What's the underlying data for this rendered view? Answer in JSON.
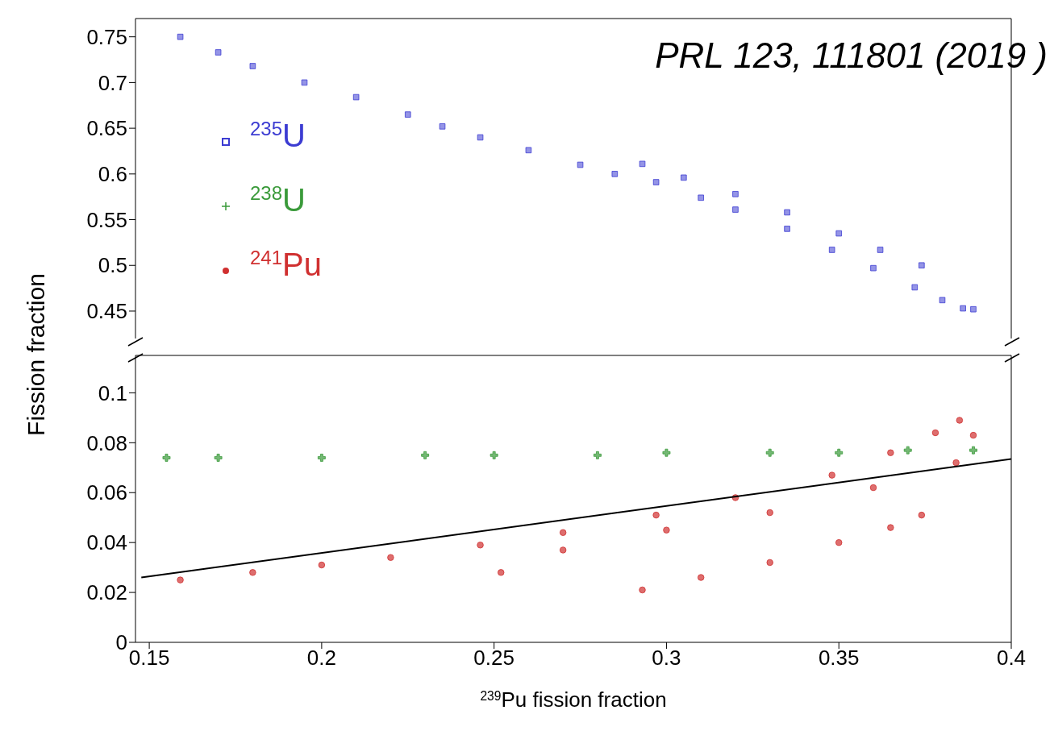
{
  "chart_data": [
    {
      "type": "scatter",
      "xlim": [
        0.146,
        0.4
      ],
      "ylim": [
        0.42,
        0.77
      ],
      "yticks": [
        0.45,
        0.5,
        0.55,
        0.6,
        0.65,
        0.7,
        0.75
      ],
      "tick_labels": "y",
      "legend": "top left",
      "annotations": [
        "PRL 123, 111801 (2019 )"
      ],
      "series": [
        {
          "name": "$^{235}$U",
          "color": "#3c3cd2",
          "marker": "square",
          "x": [
            0.159,
            0.17,
            0.18,
            0.195,
            0.21,
            0.225,
            0.235,
            0.246,
            0.26,
            0.275,
            0.285,
            0.297,
            0.31,
            0.32,
            0.335,
            0.348,
            0.36,
            0.372,
            0.38,
            0.386,
            0.389,
            0.293,
            0.305,
            0.32,
            0.335,
            0.35,
            0.362,
            0.374
          ],
          "values": [
            0.75,
            0.733,
            0.718,
            0.7,
            0.684,
            0.665,
            0.652,
            0.64,
            0.626,
            0.61,
            0.6,
            0.591,
            0.574,
            0.561,
            0.54,
            0.517,
            0.497,
            0.476,
            0.462,
            0.453,
            0.452,
            0.611,
            0.596,
            0.578,
            0.558,
            0.535,
            0.517,
            0.5
          ]
        }
      ]
    },
    {
      "type": "scatter",
      "xlabel": "$^{239}$Pu fission fraction",
      "ylabel": "Fission fraction",
      "legend": "top left",
      "xlim": [
        0.146,
        0.4
      ],
      "xticks": [
        0.15,
        0.2,
        0.25,
        0.3,
        0.35,
        0.4
      ],
      "ylim": [
        0,
        0.115
      ],
      "yticks": [
        0,
        0.02,
        0.04,
        0.06,
        0.08,
        0.1
      ],
      "series": [
        {
          "name": "$^{238}$U",
          "color": "#3a9a3a",
          "marker": "cross",
          "x": [
            0.155,
            0.17,
            0.2,
            0.23,
            0.25,
            0.28,
            0.3,
            0.33,
            0.35,
            0.37,
            0.389
          ],
          "values": [
            0.074,
            0.074,
            0.074,
            0.075,
            0.075,
            0.075,
            0.076,
            0.076,
            0.076,
            0.077,
            0.077
          ]
        },
        {
          "name": "$^{241}$Pu",
          "color": "#d03030",
          "marker": "circle",
          "x": [
            0.159,
            0.18,
            0.2,
            0.22,
            0.246,
            0.27,
            0.297,
            0.32,
            0.348,
            0.365,
            0.378,
            0.385,
            0.252,
            0.389,
            0.384,
            0.36,
            0.33,
            0.3,
            0.27,
            0.293,
            0.31,
            0.33,
            0.35,
            0.365,
            0.374
          ],
          "values": [
            0.025,
            0.028,
            0.031,
            0.034,
            0.039,
            0.044,
            0.051,
            0.058,
            0.067,
            0.076,
            0.084,
            0.089,
            0.028,
            0.083,
            0.072,
            0.062,
            0.052,
            0.045,
            0.037,
            0.021,
            0.026,
            0.032,
            0.04,
            0.046,
            0.051
          ]
        },
        {
          "type": "line",
          "color": "#000000",
          "marker": "none",
          "x": [
            0.1477,
            0.4
          ],
          "values": [
            0.026,
            0.0735
          ]
        }
      ]
    }
  ]
}
